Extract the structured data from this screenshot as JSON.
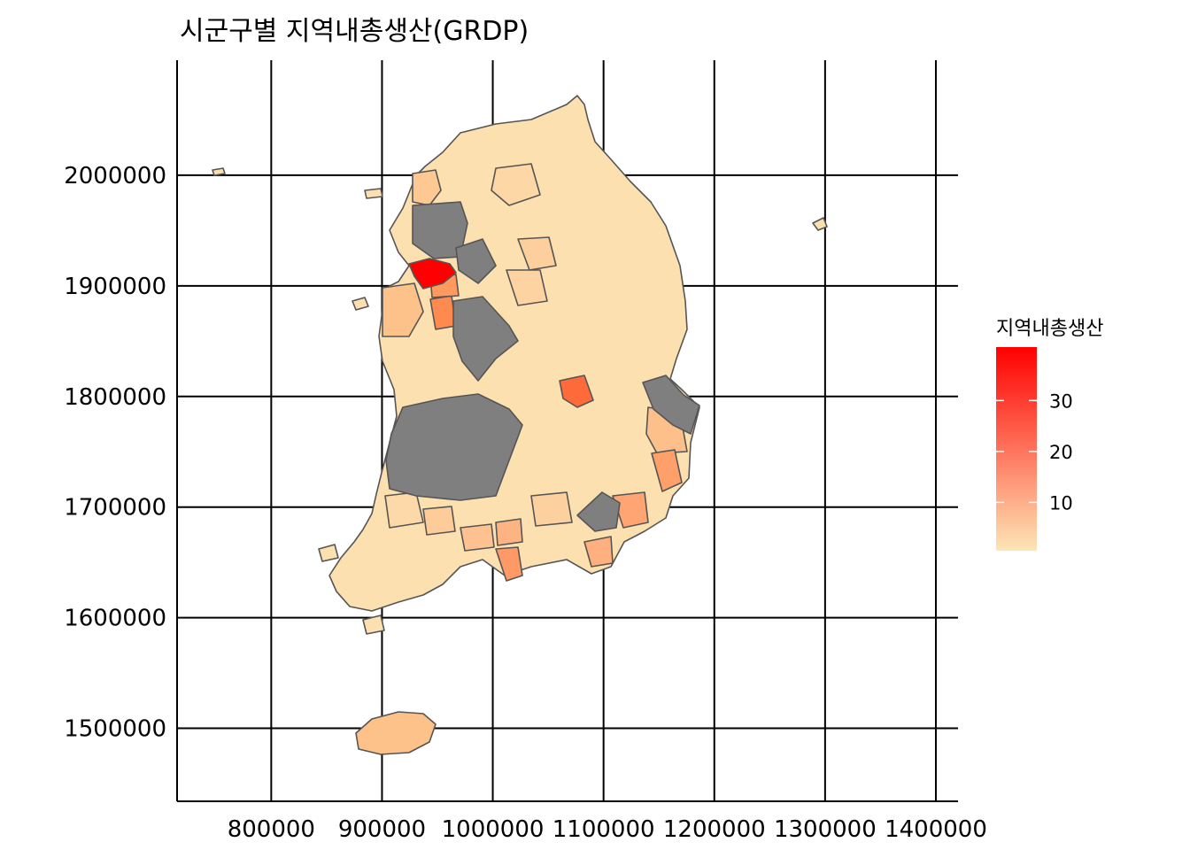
{
  "title": "시군구별 지역내총생산(GRDP)",
  "map": {
    "x_ticks": [
      800000,
      900000,
      1000000,
      1100000,
      1200000,
      1300000,
      1400000
    ],
    "x_tick_labels": [
      "800000",
      "900000",
      "1000000",
      "1100000",
      "1200000",
      "1300000",
      "1400000"
    ],
    "y_ticks": [
      2000000,
      1900000,
      1800000,
      1700000,
      1600000,
      1500000
    ],
    "y_tick_labels": [
      "2000000",
      "1900000",
      "1800000",
      "1700000",
      "1600000",
      "1500000"
    ],
    "xlim": [
      715000,
      1420000
    ],
    "ylim": [
      1434000,
      2104000
    ],
    "grid": true
  },
  "legend": {
    "title": "지역내총생산",
    "placement": "right",
    "range": [
      0.5,
      40.5
    ],
    "ticks": [
      10,
      20,
      30
    ],
    "tick_labels": [
      "10",
      "20",
      "30"
    ],
    "low_color": "#fde5b6",
    "high_color": "#ff0000",
    "na_color": "#7f7f7f"
  },
  "colors": {
    "border": "#555555",
    "background": "#ffffff"
  }
}
